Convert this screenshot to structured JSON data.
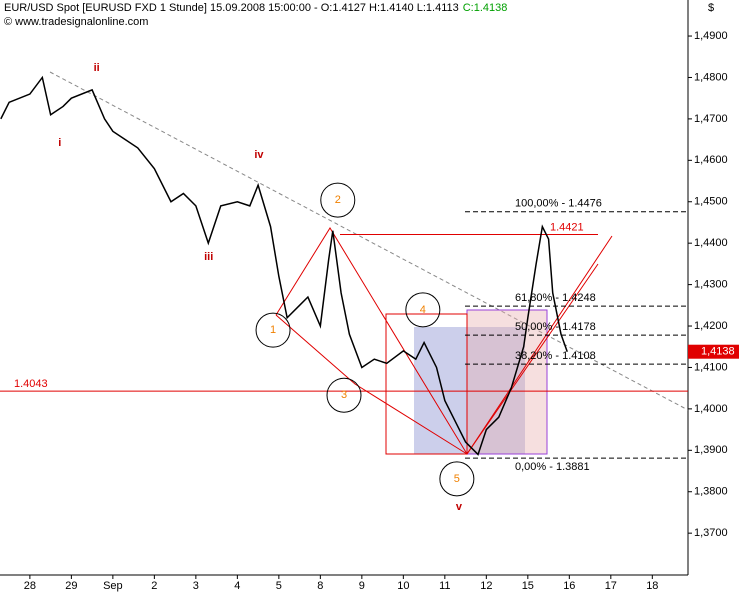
{
  "chart_data": {
    "type": "line",
    "title": "EUR/USD Spot [EURUSD FXD  1 Stunde] 15.09.2008 15:00:00 - O:1.4127 H:1.4140 L:1.4113",
    "close_label": "C:1.4138",
    "source": "© www.tradesignalonline.com",
    "currency": "$",
    "x": [
      -0.7,
      -0.5,
      0,
      0.3,
      0.5,
      0.8,
      1.0,
      1.5,
      1.8,
      2.0,
      2.3,
      2.6,
      3.0,
      3.4,
      3.7,
      4.0,
      4.3,
      4.6,
      5.0,
      5.3,
      5.5,
      5.8,
      6.0,
      6.2,
      6.5,
      6.7,
      7.0,
      7.2,
      7.3,
      7.5,
      7.7,
      8.0,
      8.3,
      8.6,
      9.0,
      9.3,
      9.5,
      9.8,
      10.0,
      10.3,
      10.5,
      10.8,
      11.0,
      11.3,
      11.6,
      11.9,
      12.0,
      12.2,
      12.35,
      12.5,
      12.6,
      12.8,
      12.95
    ],
    "series": [
      {
        "name": "EUR/USD",
        "color": "#000000",
        "values": [
          1.47,
          1.474,
          1.476,
          1.48,
          1.471,
          1.473,
          1.475,
          1.477,
          1.47,
          1.467,
          1.465,
          1.463,
          1.458,
          1.45,
          1.452,
          1.449,
          1.44,
          1.449,
          1.45,
          1.449,
          1.454,
          1.444,
          1.432,
          1.422,
          1.425,
          1.427,
          1.42,
          1.436,
          1.443,
          1.428,
          1.418,
          1.41,
          1.412,
          1.411,
          1.414,
          1.412,
          1.416,
          1.41,
          1.402,
          1.396,
          1.392,
          1.389,
          1.395,
          1.398,
          1.405,
          1.415,
          1.422,
          1.435,
          1.444,
          1.441,
          1.428,
          1.418,
          1.4138
        ]
      }
    ],
    "xlim": [
      -0.72,
      15.86
    ],
    "ylim": [
      1.3599,
      1.4987
    ],
    "xticks": [
      {
        "value": 0,
        "label": "28"
      },
      {
        "value": 1,
        "label": "29"
      },
      {
        "value": 2,
        "label": "Sep"
      },
      {
        "value": 3,
        "label": "2"
      },
      {
        "value": 4,
        "label": "3"
      },
      {
        "value": 5,
        "label": "4"
      },
      {
        "value": 6,
        "label": "5"
      },
      {
        "value": 7,
        "label": "8"
      },
      {
        "value": 8,
        "label": "9"
      },
      {
        "value": 9,
        "label": "10"
      },
      {
        "value": 10,
        "label": "11"
      },
      {
        "value": 11,
        "label": "12"
      },
      {
        "value": 12,
        "label": "15"
      },
      {
        "value": 13,
        "label": "16"
      },
      {
        "value": 14,
        "label": "17"
      },
      {
        "value": 15,
        "label": "18"
      }
    ],
    "yticks": [
      {
        "value": 1.37,
        "label": "1,3700"
      },
      {
        "value": 1.38,
        "label": "1,3800"
      },
      {
        "value": 1.39,
        "label": "1,3900"
      },
      {
        "value": 1.4,
        "label": "1,4000"
      },
      {
        "value": 1.41,
        "label": "1,4100"
      },
      {
        "value": 1.42,
        "label": "1,4200"
      },
      {
        "value": 1.43,
        "label": "1,4300"
      },
      {
        "value": 1.44,
        "label": "1,4400"
      },
      {
        "value": 1.45,
        "label": "1,4500"
      },
      {
        "value": 1.46,
        "label": "1,4600"
      },
      {
        "value": 1.47,
        "label": "1,4700"
      },
      {
        "value": 1.48,
        "label": "1,4800"
      },
      {
        "value": 1.49,
        "label": "1,4900"
      }
    ],
    "fib_levels": [
      {
        "value": 1.4476,
        "label": "100,00% - 1.4476"
      },
      {
        "value": 1.4248,
        "label": "61,80% - 1.4248"
      },
      {
        "value": 1.4178,
        "label": "50,00% - 1.4178"
      },
      {
        "value": 1.4108,
        "label": "38,20% - 1.4108"
      },
      {
        "value": 1.3881,
        "label": "0,00% - 1.3881"
      }
    ],
    "red_levels": [
      {
        "value": 1.4043,
        "label": "1.4043"
      },
      {
        "value": 1.4421,
        "label": "1.4421"
      }
    ],
    "last_price": {
      "value": 1.4138,
      "label": "1,4138"
    },
    "wave_labels": [
      {
        "label": "i",
        "x": 0.72,
        "y": 1.4642
      },
      {
        "label": "ii",
        "x": 1.61,
        "y": 1.4823
      },
      {
        "label": "iii",
        "x": 4.31,
        "y": 1.4367
      },
      {
        "label": "iv",
        "x": 5.52,
        "y": 1.4613
      },
      {
        "label": "v",
        "x": 10.34,
        "y": 1.3763
      }
    ],
    "count_labels": [
      {
        "label": "1",
        "x": 5.86,
        "y": 1.419
      },
      {
        "label": "2",
        "x": 7.42,
        "y": 1.4504
      },
      {
        "label": "3",
        "x": 7.57,
        "y": 1.4033
      },
      {
        "label": "4",
        "x": 9.47,
        "y": 1.4239
      },
      {
        "label": "5",
        "x": 10.29,
        "y": 1.3831
      }
    ]
  }
}
